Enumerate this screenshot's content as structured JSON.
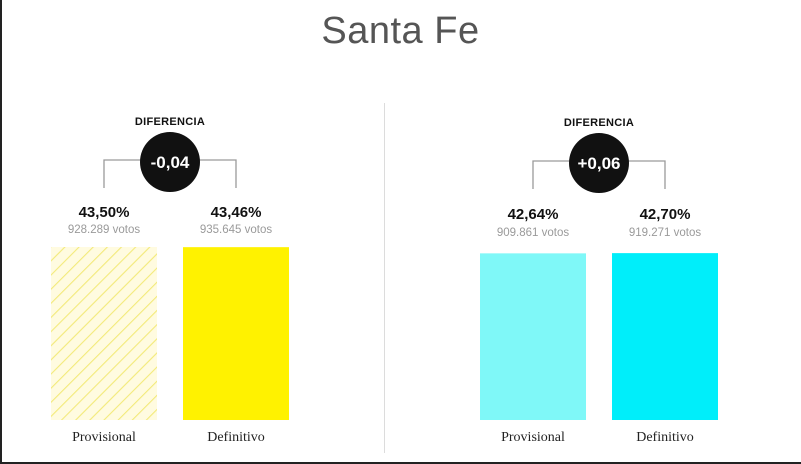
{
  "title": "Santa Fe",
  "chart_data": [
    {
      "type": "bar",
      "diff_label": "DIFERENCIA",
      "diff_value": "-0,04",
      "categories": [
        "Provisional",
        "Definitivo"
      ],
      "values": [
        43.5,
        43.46
      ],
      "value_labels": [
        "43,50%",
        "43,46%"
      ],
      "vote_labels": [
        "928.289 votos",
        "935.645 votos"
      ],
      "bar_styles": [
        "hatched",
        "solid"
      ],
      "colors": [
        "#fff200",
        "#fff200"
      ],
      "ylim": [
        0,
        43.5
      ]
    },
    {
      "type": "bar",
      "diff_label": "DIFERENCIA",
      "diff_value": "+0,06",
      "categories": [
        "Provisional",
        "Definitivo"
      ],
      "values": [
        42.64,
        42.7
      ],
      "value_labels": [
        "42,64%",
        "42,70%"
      ],
      "vote_labels": [
        "909.861 votos",
        "919.271 votos"
      ],
      "bar_styles": [
        "solid",
        "solid"
      ],
      "colors": [
        "#7ff8f8",
        "#00eefa"
      ],
      "ylim": [
        0,
        43.5
      ]
    }
  ]
}
